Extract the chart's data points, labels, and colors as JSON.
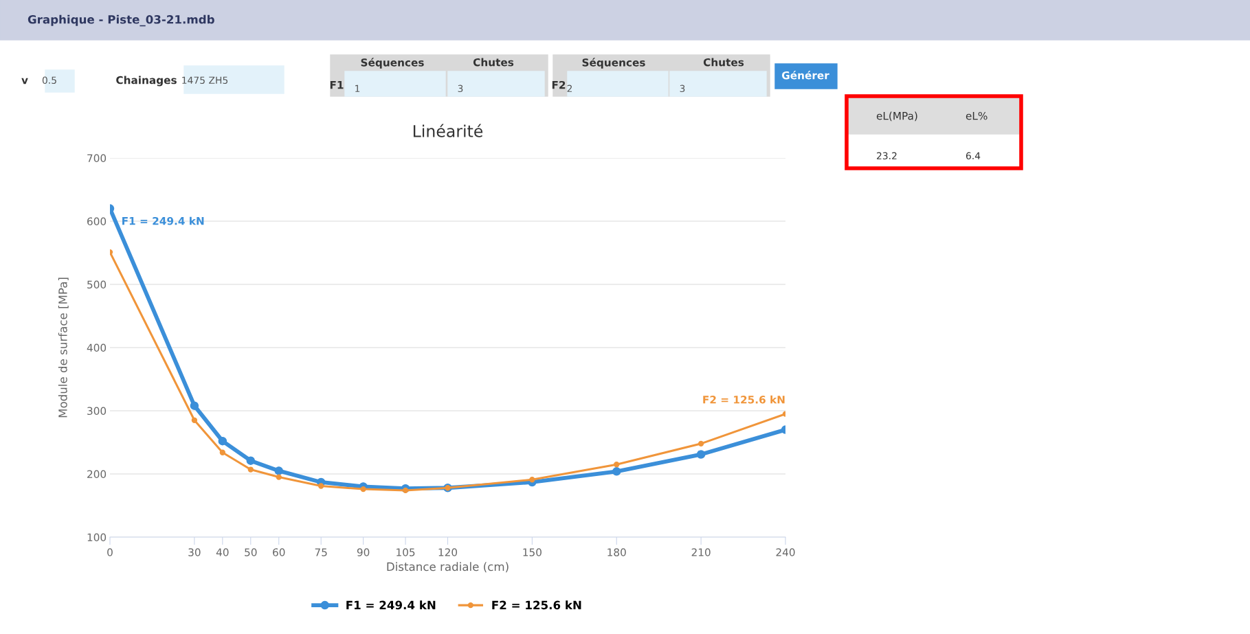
{
  "chart_data": {
    "type": "line",
    "title": "Linéarité",
    "xlabel": "Distance radiale (cm)",
    "ylabel": "Module de surface [MPa]",
    "x": [
      0,
      30,
      40,
      50,
      60,
      75,
      90,
      105,
      120,
      150,
      180,
      210,
      240
    ],
    "series": [
      {
        "name": "F1 = 249.4 kN",
        "color": "#3b8fd9",
        "values": [
          620,
          308,
          252,
          221,
          205,
          187,
          180,
          177,
          178,
          187,
          204,
          231,
          270
        ]
      },
      {
        "name": "F2 = 125.6 kN",
        "color": "#f0953a",
        "values": [
          551,
          285,
          234,
          207,
          195,
          181,
          176,
          174,
          178,
          191,
          215,
          248,
          295
        ]
      }
    ],
    "xlim": [
      0,
      240
    ],
    "xticks": [
      0,
      30,
      40,
      50,
      60,
      75,
      90,
      105,
      120,
      150,
      180,
      210,
      240
    ],
    "ylim": [
      100,
      700
    ],
    "yticks": [
      100,
      200,
      300,
      400,
      500,
      600,
      700
    ],
    "grid": "y",
    "legend": "bottom",
    "marker": "circle",
    "line_style": "solid",
    "annotations": [
      "Graphique - Piste_03-21.mdb",
      "v",
      "0.5",
      "Chainages",
      "1475 ZH5",
      "Séquences",
      "Chutes",
      "F1",
      "1",
      "3",
      "Séquences",
      "Chutes",
      "F2",
      "2",
      "3",
      "Générer",
      "eL(MPa)",
      "eL%",
      "23.2",
      "6.4"
    ]
  }
}
